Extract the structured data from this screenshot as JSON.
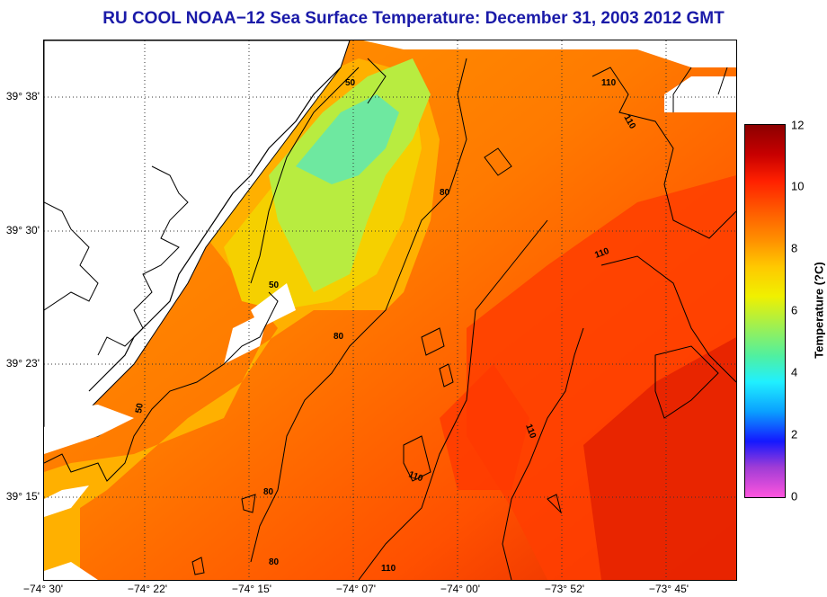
{
  "title": "RU COOL  NOAA−12  Sea Surface Temperature:  December 31, 2003 2012 GMT",
  "axes": {
    "lat_labels": [
      "39° 38'",
      "39° 30'",
      "39° 23'",
      "39° 15'"
    ],
    "lon_labels": [
      "−74° 30'",
      "−74° 22'",
      "−74° 15'",
      "−74° 07'",
      "−74° 00'",
      "−73° 52'",
      "−73° 45'"
    ],
    "grid": "dotted"
  },
  "colorbar": {
    "label": "Temperature (?C)",
    "ticks": [
      "12",
      "10",
      "8",
      "6",
      "4",
      "2",
      "0"
    ],
    "range": [
      0,
      12
    ],
    "colors": [
      "#ff55dd",
      "#a03cd6",
      "#1418ff",
      "#0aa0ff",
      "#20f0ff",
      "#50f0a0",
      "#a0f050",
      "#f0f000",
      "#ffc800",
      "#ff9000",
      "#ff5a00",
      "#ff2000",
      "#c80000",
      "#8c0000"
    ]
  },
  "contours": {
    "labels": [
      "50",
      "50",
      "50",
      "80",
      "80",
      "80",
      "80",
      "110",
      "110",
      "110",
      "110",
      "110",
      "110"
    ],
    "color": "#000000"
  },
  "map_colors": {
    "land": "#ffffff",
    "coast": "#000000",
    "cool_water": "#6ee8a0",
    "mid_water": "#f5d000",
    "warm_water": "#ff8a00",
    "hot_water": "#ff4800",
    "hottest_water": "#e02000"
  }
}
